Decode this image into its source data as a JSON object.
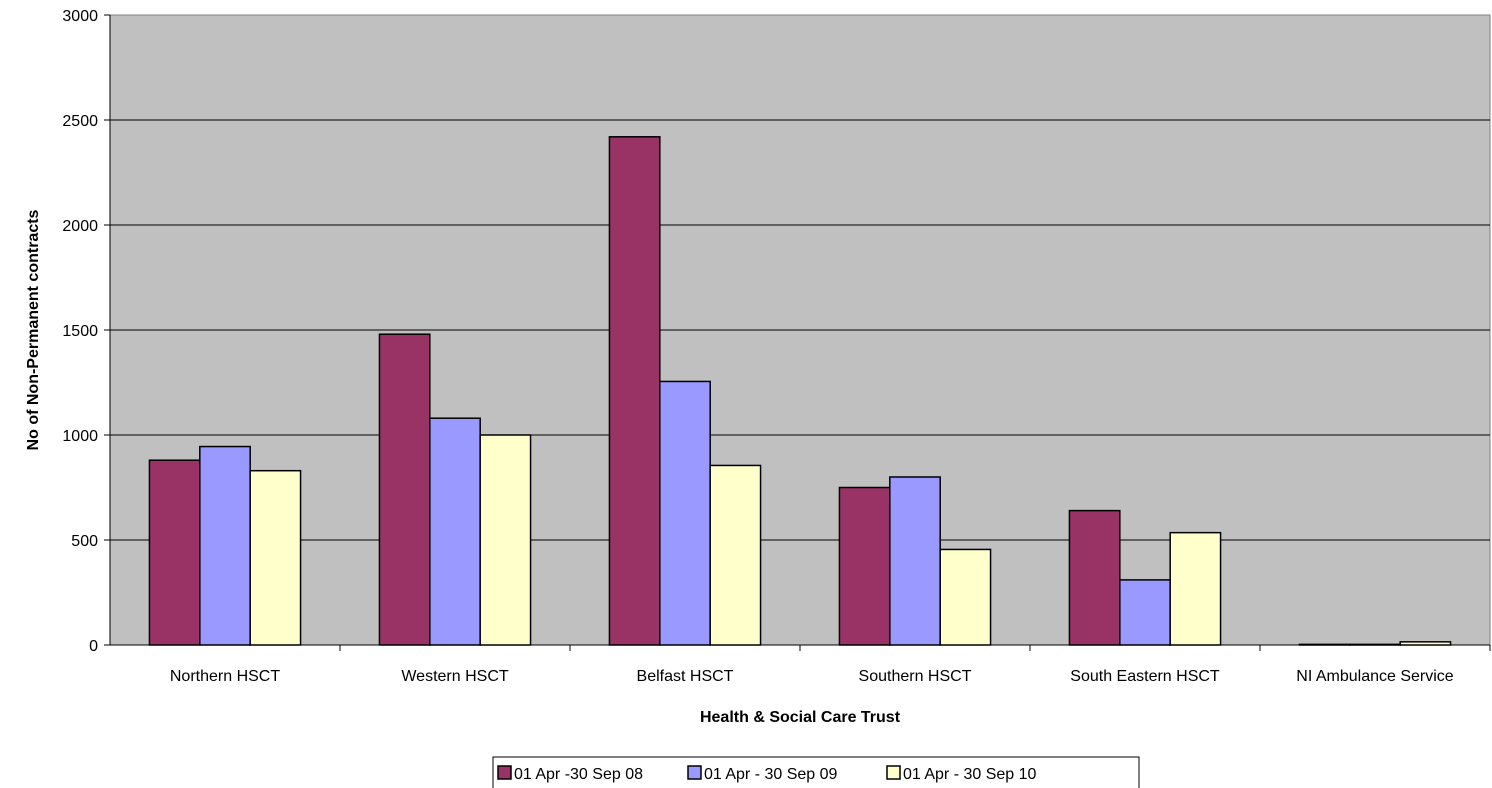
{
  "chart_data": {
    "type": "bar",
    "title": "",
    "xlabel": "Health & Social Care Trust",
    "ylabel": "No of Non-Permanent contracts",
    "ylim": [
      0,
      3000
    ],
    "yticks": [
      0,
      500,
      1000,
      1500,
      2000,
      2500,
      3000
    ],
    "grid": true,
    "legend_position": "bottom",
    "categories": [
      "Northern HSCT",
      "Western HSCT",
      "Belfast HSCT",
      "Southern HSCT",
      "South Eastern HSCT",
      "NI Ambulance Service"
    ],
    "series": [
      {
        "name": "01 Apr -30 Sep 08",
        "color": "#993366",
        "values": [
          880,
          1480,
          2420,
          750,
          640,
          3
        ]
      },
      {
        "name": "01 Apr - 30 Sep 09",
        "color": "#9999FF",
        "values": [
          945,
          1080,
          1255,
          800,
          310,
          3
        ]
      },
      {
        "name": "01 Apr - 30 Sep 10",
        "color": "#FFFFCC",
        "values": [
          830,
          1000,
          855,
          455,
          535,
          15
        ]
      }
    ],
    "plot_background": "#C0C0C0"
  }
}
